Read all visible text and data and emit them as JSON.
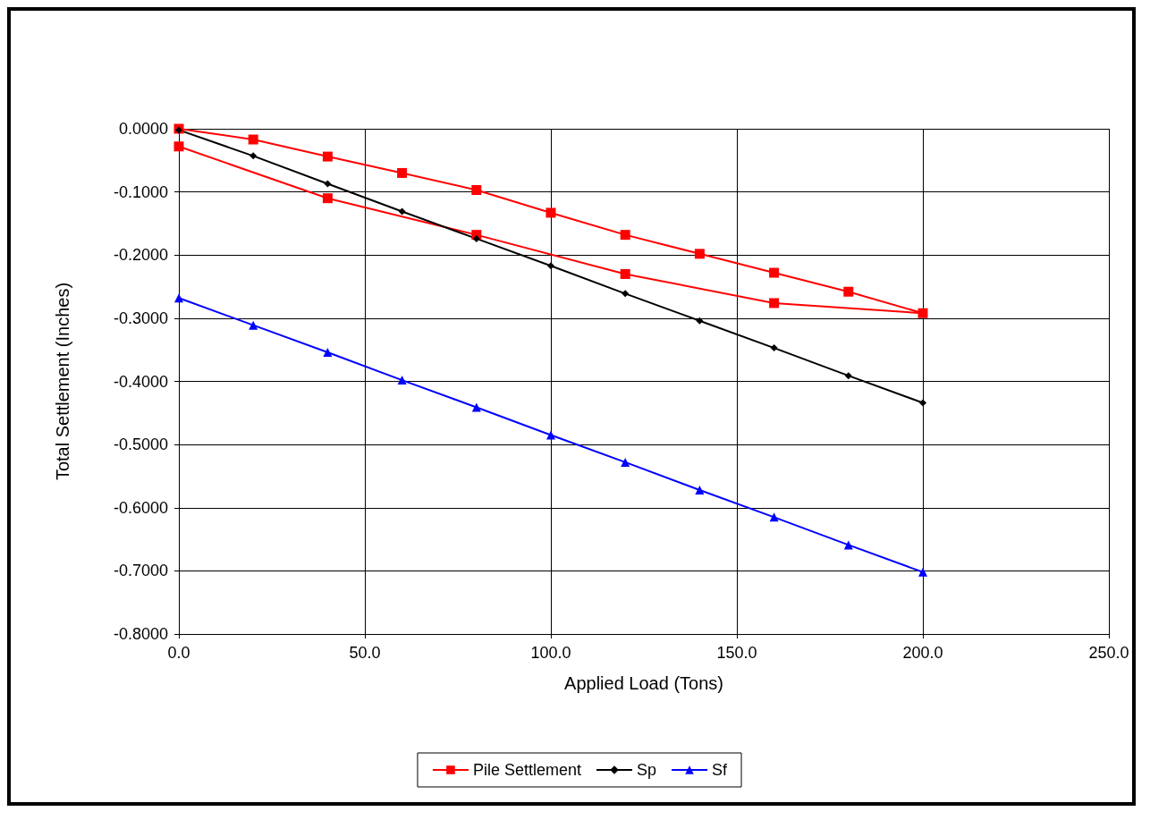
{
  "chart_data": {
    "type": "line",
    "xlabel": "Applied Load (Tons)",
    "ylabel": "Total Settlement (Inches)",
    "xlim": [
      0,
      250
    ],
    "xticks": [
      {
        "value": 0,
        "label": "0.0"
      },
      {
        "value": 50,
        "label": "50.0"
      },
      {
        "value": 100,
        "label": "100.0"
      },
      {
        "value": 150,
        "label": "150.0"
      },
      {
        "value": 200,
        "label": "200.0"
      },
      {
        "value": 250,
        "label": "250.0"
      }
    ],
    "ylim": [
      -0.8,
      0
    ],
    "yticks": [
      {
        "value": 0,
        "label": "0.0000"
      },
      {
        "value": -0.1,
        "label": "-0.1000"
      },
      {
        "value": -0.2,
        "label": "-0.2000"
      },
      {
        "value": -0.3,
        "label": "-0.3000"
      },
      {
        "value": -0.4,
        "label": "-0.4000"
      },
      {
        "value": -0.5,
        "label": "-0.5000"
      },
      {
        "value": -0.6,
        "label": "-0.6000"
      },
      {
        "value": -0.7,
        "label": "-0.7000"
      },
      {
        "value": -0.8,
        "label": "-0.8000"
      }
    ],
    "grid": true,
    "legend": "bottom",
    "line_style": "solid",
    "series": [
      {
        "name": "Pile Settlement",
        "color": "#ff0000",
        "marker": "square",
        "x": [
          0,
          20,
          40,
          60,
          80,
          100,
          120,
          140,
          160,
          180,
          200,
          160,
          120,
          80,
          40,
          0
        ],
        "values": [
          0,
          -0.017,
          -0.044,
          -0.07,
          -0.097,
          -0.133,
          -0.168,
          -0.198,
          -0.228,
          -0.258,
          -0.292,
          -0.276,
          -0.23,
          -0.168,
          -0.11,
          -0.028
        ]
      },
      {
        "name": "Sp",
        "color": "#000000",
        "marker": "diamond",
        "x": [
          0,
          20,
          40,
          60,
          80,
          100,
          120,
          140,
          160,
          180,
          200
        ],
        "values": [
          -0.002,
          -0.043,
          -0.087,
          -0.131,
          -0.174,
          -0.217,
          -0.261,
          -0.304,
          -0.347,
          -0.391,
          -0.434
        ]
      },
      {
        "name": "Sf",
        "color": "#0000ff",
        "marker": "triangle",
        "x": [
          0,
          20,
          40,
          60,
          80,
          100,
          120,
          140,
          160,
          180,
          200
        ],
        "values": [
          -0.268,
          -0.311,
          -0.354,
          -0.398,
          -0.441,
          -0.485,
          -0.528,
          -0.572,
          -0.615,
          -0.659,
          -0.702
        ]
      }
    ]
  }
}
